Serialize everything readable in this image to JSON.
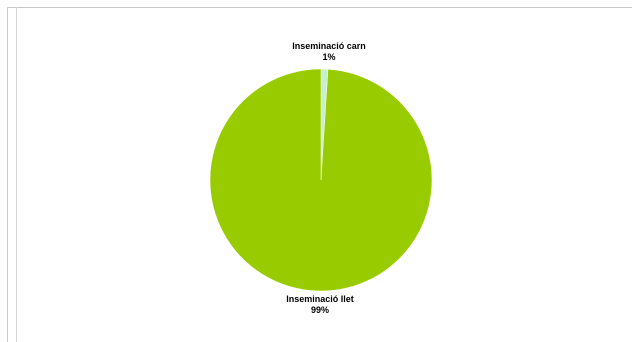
{
  "chart_data": {
    "type": "pie",
    "slices": [
      {
        "label": "Inseminació carn",
        "value": 1,
        "percent_label": "1%",
        "color": "#c8f0d0"
      },
      {
        "label": "Inseminació llet",
        "value": 99,
        "percent_label": "99%",
        "color": "#99cc00"
      }
    ]
  }
}
